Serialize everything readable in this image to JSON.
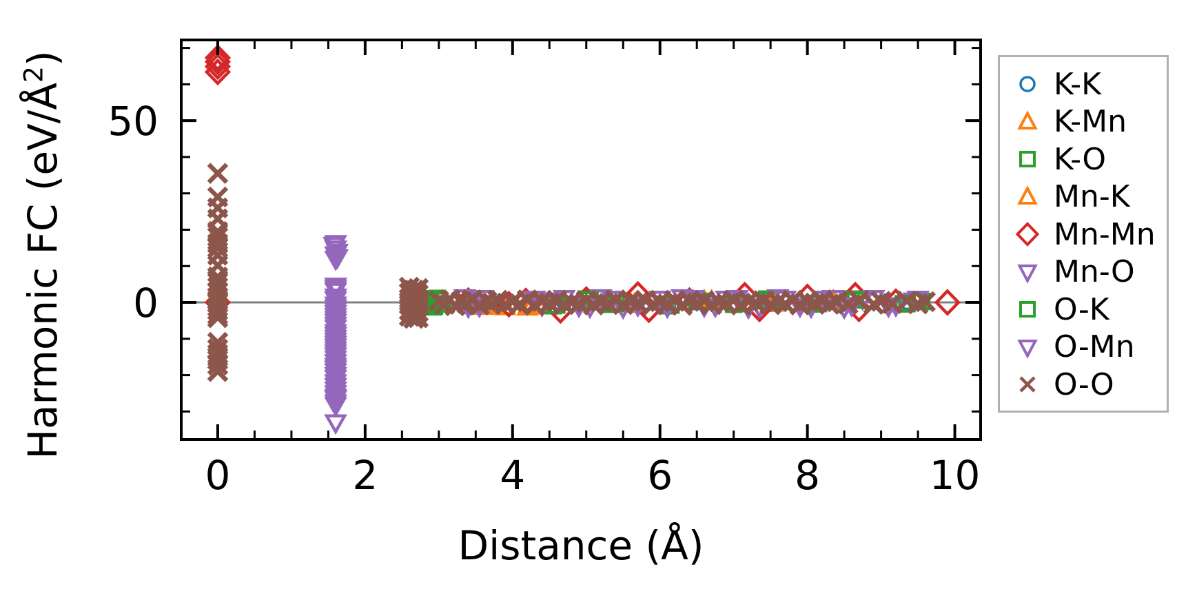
{
  "chart_data": {
    "type": "scatter",
    "title": "",
    "xlabel": "Distance (Å)",
    "ylabel": "Harmonic FC (eV/Å²)",
    "ylabel_parts": {
      "base": "Harmonic FC (eV/Å",
      "sup": "2",
      "close": ")"
    },
    "xlim": [
      -0.495,
      10.35
    ],
    "ylim": [
      -37.7,
      72.2
    ],
    "xticks": {
      "major": [
        0,
        2,
        4,
        6,
        8,
        10
      ],
      "labels": [
        "0",
        "2",
        "4",
        "6",
        "8",
        "10"
      ],
      "minor_step": 0.5
    },
    "yticks": {
      "major": [
        0,
        50
      ],
      "labels": [
        "0",
        "50"
      ],
      "minor_step": 10
    },
    "grid": false,
    "zero_line": {
      "y": 0,
      "color": "#808080"
    },
    "legend": {
      "position": "outside-right",
      "border_color": "#b0b0b0"
    },
    "series": [
      {
        "name": "K-K",
        "marker": "circle",
        "color": "#1f77b4",
        "points": [
          [
            0,
            0.3
          ],
          [
            0,
            -0.3
          ],
          [
            3.35,
            0.2
          ],
          [
            4.7,
            -0.2
          ],
          [
            5.3,
            0.3
          ],
          [
            6.2,
            0
          ],
          [
            7.4,
            0.2
          ],
          [
            8.5,
            -0.2
          ],
          [
            9.35,
            0
          ]
        ]
      },
      {
        "name": "K-Mn",
        "marker": "triangle_up",
        "color": "#ff7f0e",
        "points": [
          [
            3.6,
            -1.2
          ],
          [
            3.75,
            -0.8
          ],
          [
            4.2,
            -1.4
          ],
          [
            4.35,
            -0.9
          ],
          [
            5.6,
            -0.4
          ],
          [
            6.6,
            0.4
          ],
          [
            7.5,
            -0.4
          ],
          [
            8.3,
            0.3
          ]
        ]
      },
      {
        "name": "K-O",
        "marker": "square",
        "color": "#2ca02c",
        "points": [
          [
            2.78,
            0.8
          ],
          [
            2.82,
            -0.9
          ],
          [
            2.88,
            0.3
          ],
          [
            2.92,
            -1.2
          ],
          [
            2.98,
            1.1
          ],
          [
            3.05,
            -0.4
          ],
          [
            4.55,
            -0.9
          ],
          [
            5.0,
            0.9
          ],
          [
            5.35,
            -0.5
          ],
          [
            6.1,
            -0.9
          ],
          [
            6.5,
            0.5
          ],
          [
            7.0,
            -0.5
          ],
          [
            7.45,
            0.9
          ],
          [
            8.1,
            -0.4
          ],
          [
            8.6,
            0.9
          ],
          [
            9.3,
            -0.4
          ],
          [
            9.5,
            0.4
          ]
        ]
      },
      {
        "name": "Mn-K",
        "marker": "triangle_up",
        "color": "#ff7f0e",
        "points": [
          [
            3.65,
            -1.0
          ],
          [
            3.9,
            -1.3
          ],
          [
            4.25,
            -1.1
          ],
          [
            5.65,
            -0.6
          ],
          [
            6.7,
            0.3
          ],
          [
            7.55,
            -0.3
          ],
          [
            8.35,
            0.4
          ]
        ]
      },
      {
        "name": "Mn-Mn",
        "marker": "diamond",
        "color": "#d62728",
        "points": [
          [
            0,
            67.3
          ],
          [
            0,
            66.2
          ],
          [
            0,
            64.9
          ],
          [
            0,
            63.4
          ],
          [
            0,
            0
          ],
          [
            3.4,
            0.5
          ],
          [
            3.95,
            -0.5
          ],
          [
            4.18,
            0.4
          ],
          [
            4.65,
            -2.2
          ],
          [
            5.0,
            0.8
          ],
          [
            5.7,
            2.2
          ],
          [
            5.85,
            -2.0
          ],
          [
            6.4,
            0.5
          ],
          [
            7.15,
            2.0
          ],
          [
            7.35,
            -1.8
          ],
          [
            8.0,
            1.5
          ],
          [
            8.65,
            2.0
          ],
          [
            8.7,
            -1.8
          ],
          [
            9.2,
            0.2
          ],
          [
            9.9,
            0
          ]
        ]
      },
      {
        "name": "Mn-O",
        "marker": "triangle_down",
        "color": "#9467bd",
        "points": [
          [
            1.6,
            16.3
          ],
          [
            1.6,
            14.8
          ],
          [
            1.6,
            13.2
          ],
          [
            1.62,
            12.4
          ],
          [
            1.6,
            4.6
          ],
          [
            1.6,
            3.2
          ],
          [
            1.6,
            0.8
          ],
          [
            1.6,
            -0.6
          ],
          [
            1.6,
            -2.2
          ],
          [
            1.6,
            -3.8
          ],
          [
            1.6,
            -5.4
          ],
          [
            1.6,
            -7.0
          ],
          [
            1.6,
            -9.0
          ],
          [
            1.6,
            -10.6
          ],
          [
            1.6,
            -12.2
          ],
          [
            1.6,
            -13.8
          ],
          [
            1.6,
            -15.5
          ],
          [
            1.6,
            -17.5
          ],
          [
            1.6,
            -19.0
          ],
          [
            1.6,
            -20.8
          ],
          [
            1.6,
            -23.0
          ],
          [
            1.6,
            -25.0
          ],
          [
            1.6,
            -26.5
          ],
          [
            1.6,
            -28.2
          ],
          [
            1.6,
            -33.0
          ],
          [
            3.35,
            1.4
          ],
          [
            3.55,
            -1.0
          ],
          [
            4.3,
            1.0
          ],
          [
            4.5,
            0.5
          ],
          [
            4.9,
            -1.0
          ],
          [
            5.2,
            1.4
          ],
          [
            5.5,
            -1.4
          ],
          [
            6.0,
            1.0
          ],
          [
            6.3,
            1.4
          ],
          [
            6.6,
            -1.0
          ],
          [
            6.9,
            1.0
          ],
          [
            7.2,
            -1.4
          ],
          [
            7.6,
            1.4
          ],
          [
            7.9,
            -1.0
          ],
          [
            8.2,
            1.0
          ],
          [
            8.5,
            -1.4
          ],
          [
            8.75,
            1.0
          ],
          [
            9.1,
            -1.0
          ],
          [
            9.45,
            0.5
          ]
        ]
      },
      {
        "name": "O-K",
        "marker": "square",
        "color": "#2ca02c",
        "points": [
          [
            2.8,
            -0.6
          ],
          [
            2.86,
            1.0
          ],
          [
            2.94,
            -1.0
          ],
          [
            3.0,
            0.6
          ],
          [
            4.6,
            -0.7
          ],
          [
            5.05,
            0.7
          ],
          [
            5.4,
            -0.3
          ],
          [
            6.15,
            -0.7
          ],
          [
            6.55,
            0.3
          ],
          [
            7.05,
            -0.3
          ],
          [
            7.5,
            0.7
          ],
          [
            8.15,
            -0.3
          ],
          [
            8.65,
            0.7
          ],
          [
            9.35,
            -0.3
          ],
          [
            9.55,
            0.3
          ]
        ]
      },
      {
        "name": "O-Mn",
        "marker": "triangle_down",
        "color": "#9467bd",
        "points": [
          [
            1.58,
            15.8
          ],
          [
            1.62,
            13.9
          ],
          [
            1.6,
            12.0
          ],
          [
            1.6,
            3.9
          ],
          [
            1.6,
            1.6
          ],
          [
            1.6,
            -1.4
          ],
          [
            1.6,
            -3.0
          ],
          [
            1.6,
            -4.6
          ],
          [
            1.6,
            -6.2
          ],
          [
            1.6,
            -8.2
          ],
          [
            1.6,
            -9.8
          ],
          [
            1.6,
            -11.4
          ],
          [
            1.6,
            -13.0
          ],
          [
            1.6,
            -14.6
          ],
          [
            1.6,
            -16.5
          ],
          [
            1.6,
            -18.2
          ],
          [
            1.6,
            -20.0
          ],
          [
            1.6,
            -22.0
          ],
          [
            1.6,
            -24.0
          ],
          [
            1.6,
            -26.0
          ],
          [
            1.6,
            -27.5
          ],
          [
            3.4,
            -1.2
          ],
          [
            3.6,
            1.2
          ],
          [
            4.4,
            -0.8
          ],
          [
            4.7,
            1.2
          ],
          [
            5.05,
            -1.2
          ],
          [
            5.35,
            1.0
          ],
          [
            5.7,
            -0.8
          ],
          [
            6.1,
            -1.2
          ],
          [
            6.45,
            1.2
          ],
          [
            6.75,
            -1.0
          ],
          [
            7.05,
            1.2
          ],
          [
            7.35,
            -1.2
          ],
          [
            7.7,
            1.0
          ],
          [
            8.05,
            -1.2
          ],
          [
            8.35,
            1.2
          ],
          [
            8.6,
            -0.8
          ],
          [
            8.9,
            1.2
          ],
          [
            9.2,
            -0.8
          ],
          [
            9.5,
            1.0
          ]
        ]
      },
      {
        "name": "O-O",
        "marker": "x",
        "color": "#8c564b",
        "points": [
          [
            0,
            35.5
          ],
          [
            0,
            29.0
          ],
          [
            0,
            26.0
          ],
          [
            0,
            23.0
          ],
          [
            0,
            19.5
          ],
          [
            0,
            18.0
          ],
          [
            0,
            16.2
          ],
          [
            0,
            15.0
          ],
          [
            0,
            13.0
          ],
          [
            0,
            10.2
          ],
          [
            0,
            7.0
          ],
          [
            0,
            5.5
          ],
          [
            0,
            4.2
          ],
          [
            0,
            2.8
          ],
          [
            0,
            1.5
          ],
          [
            0,
            0.6
          ],
          [
            0,
            -0.2
          ],
          [
            0,
            -1.2
          ],
          [
            0,
            -2.2
          ],
          [
            0,
            -3.4
          ],
          [
            0,
            -4.2
          ],
          [
            0,
            -11.0
          ],
          [
            0,
            -12.8
          ],
          [
            0,
            -14.2
          ],
          [
            0,
            -15.8
          ],
          [
            0,
            -17.2
          ],
          [
            0,
            -19.0
          ],
          [
            2.6,
            4.2
          ],
          [
            2.66,
            3.4
          ],
          [
            2.6,
            2.6
          ],
          [
            2.66,
            1.8
          ],
          [
            2.6,
            1.0
          ],
          [
            2.66,
            0.2
          ],
          [
            2.6,
            -0.6
          ],
          [
            2.66,
            -1.4
          ],
          [
            2.6,
            -2.2
          ],
          [
            2.66,
            -3.0
          ],
          [
            2.6,
            -3.8
          ],
          [
            2.66,
            -4.4
          ],
          [
            2.72,
            3.8
          ],
          [
            2.72,
            2.2
          ],
          [
            2.72,
            0.6
          ],
          [
            2.72,
            -1.0
          ],
          [
            2.72,
            -2.6
          ],
          [
            2.72,
            -4.2
          ],
          [
            3.0,
            0.4
          ],
          [
            3.08,
            -0.5
          ],
          [
            3.15,
            0.8
          ],
          [
            3.22,
            -0.9
          ],
          [
            3.3,
            0.2
          ],
          [
            3.38,
            -0.3
          ],
          [
            3.45,
            0.7
          ],
          [
            3.55,
            -0.7
          ],
          [
            3.65,
            0.3
          ],
          [
            3.72,
            -0.2
          ],
          [
            3.8,
            0.6
          ],
          [
            3.9,
            -0.6
          ],
          [
            4.0,
            0.2
          ],
          [
            4.1,
            -0.4
          ],
          [
            4.2,
            0.7
          ],
          [
            4.3,
            -0.8
          ],
          [
            4.4,
            0.3
          ],
          [
            4.5,
            -0.2
          ],
          [
            4.6,
            0.6
          ],
          [
            4.7,
            -0.6
          ],
          [
            4.8,
            0.1
          ],
          [
            4.9,
            -0.4
          ],
          [
            5.0,
            0.5
          ],
          [
            5.1,
            -0.7
          ],
          [
            5.2,
            0.2
          ],
          [
            5.3,
            -0.3
          ],
          [
            5.4,
            0.7
          ],
          [
            5.5,
            -0.6
          ],
          [
            5.6,
            0.3
          ],
          [
            5.7,
            -0.2
          ],
          [
            5.8,
            0.6
          ],
          [
            5.9,
            -0.7
          ],
          [
            6.0,
            0.2
          ],
          [
            6.1,
            -0.4
          ],
          [
            6.2,
            0.6
          ],
          [
            6.3,
            -0.8
          ],
          [
            6.4,
            0.3
          ],
          [
            6.5,
            -0.2
          ],
          [
            6.6,
            0.5
          ],
          [
            6.7,
            -0.6
          ],
          [
            6.8,
            0.2
          ],
          [
            6.9,
            -0.3
          ],
          [
            7.0,
            0.6
          ],
          [
            7.1,
            -0.7
          ],
          [
            7.2,
            0.3
          ],
          [
            7.3,
            -0.2
          ],
          [
            7.4,
            0.5
          ],
          [
            7.5,
            -0.6
          ],
          [
            7.6,
            0.2
          ],
          [
            7.7,
            -0.4
          ],
          [
            7.8,
            0.6
          ],
          [
            7.9,
            -0.7
          ],
          [
            8.0,
            0.3
          ],
          [
            8.1,
            -0.2
          ],
          [
            8.2,
            0.5
          ],
          [
            8.3,
            -0.5
          ],
          [
            8.4,
            0.2
          ],
          [
            8.55,
            -0.4
          ],
          [
            8.7,
            0.5
          ],
          [
            8.9,
            -0.5
          ],
          [
            9.0,
            0.3
          ],
          [
            9.15,
            -0.3
          ],
          [
            9.35,
            0.4
          ],
          [
            9.5,
            -0.4
          ],
          [
            9.6,
            0.2
          ]
        ]
      }
    ]
  }
}
